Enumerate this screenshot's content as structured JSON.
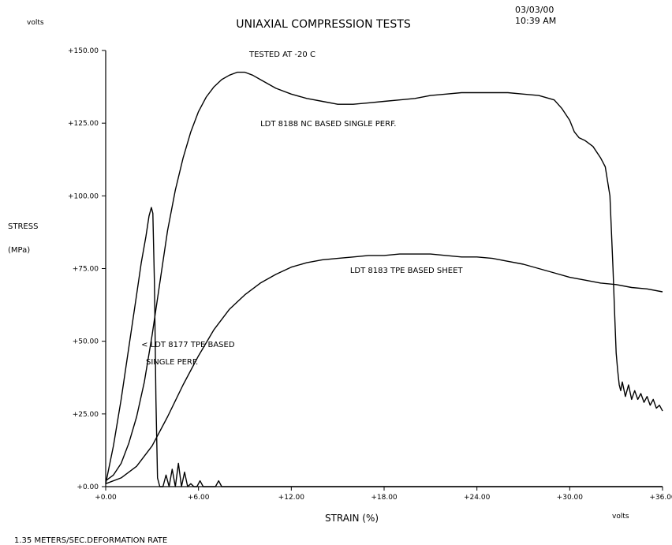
{
  "header": {
    "volts_top": "volts",
    "title": "UNIAXIAL COMPRESSION TESTS",
    "date": "03/03/00",
    "time": "10:39 AM"
  },
  "footer": {
    "rate": "1.35 METERS/SEC.DEFORMATION RATE",
    "volts_bottom": "volts"
  },
  "chart_data": {
    "type": "line",
    "title": "UNIAXIAL COMPRESSION TESTS",
    "subtitle": "TESTED AT -20 C",
    "xlabel": "STRAIN (%)",
    "ylabel": [
      "STRESS",
      "(MPa)"
    ],
    "xlim": [
      0,
      36
    ],
    "ylim": [
      0,
      150
    ],
    "x_ticks": [
      0,
      6,
      12,
      18,
      24,
      30,
      36
    ],
    "x_tick_labels": [
      "+0.00",
      "+6.00",
      "+12.00",
      "+18.00",
      "+24.00",
      "+30.00",
      "+36.00"
    ],
    "y_ticks": [
      0,
      25,
      50,
      75,
      100,
      125,
      150
    ],
    "y_tick_labels": [
      "+0.00",
      "+25.00",
      "+50.00",
      "+75.00",
      "+100.00",
      "+125.00",
      "+150.00"
    ],
    "grid": false,
    "annotations": [
      {
        "text": "LDT 8188 NC BASED SINGLE PERF.",
        "x": 10.0,
        "y": 124
      },
      {
        "text": "LDT 8183 TPE BASED SHEET",
        "x": 15.8,
        "y": 73.5
      },
      {
        "text": "< LDT 8177 TPE BASED",
        "x": 2.3,
        "y": 48
      },
      {
        "text": "SINGLE PERF.",
        "x": 2.6,
        "y": 42
      }
    ],
    "series": [
      {
        "x": [
          0,
          0.5,
          1,
          1.5,
          2,
          2.5,
          3,
          3.5,
          4,
          4.5,
          5,
          5.5,
          6,
          6.5,
          7,
          7.5,
          8,
          8.5,
          9,
          9.5,
          10,
          11,
          12,
          13,
          14,
          15,
          16,
          17,
          18,
          19,
          20,
          21,
          22,
          23,
          24,
          25,
          26,
          27,
          28,
          29,
          29.5,
          30,
          30.3,
          30.6,
          31,
          31.5,
          32,
          32.3,
          32.6,
          32.8,
          32.9,
          33.0,
          33.1,
          33.2,
          33.3,
          33.4,
          33.6,
          33.8,
          34,
          34.2,
          34.4,
          34.6,
          34.8,
          35,
          35.2,
          35.4,
          35.6,
          35.8,
          36
        ],
        "y": [
          2,
          4,
          8,
          15,
          24,
          36,
          52,
          70,
          88,
          102,
          113,
          122,
          129,
          134,
          137.5,
          140,
          141.5,
          142.5,
          142.5,
          141.5,
          140,
          137,
          135,
          133.5,
          132.5,
          131.5,
          131.5,
          132,
          132.5,
          133,
          133.5,
          134.5,
          135,
          135.5,
          135.5,
          135.5,
          135.5,
          135,
          134.5,
          133,
          130,
          126,
          122,
          120,
          119,
          117,
          113,
          110,
          100,
          75,
          60,
          46,
          40,
          35,
          33,
          36,
          31,
          35,
          30,
          33,
          30,
          32,
          29,
          31,
          28,
          30,
          27,
          28,
          26
        ]
      },
      {
        "x": [
          0,
          1,
          2,
          3,
          4,
          5,
          6,
          7,
          8,
          9,
          10,
          11,
          12,
          13,
          14,
          15,
          16,
          17,
          18,
          19,
          20,
          21,
          22,
          23,
          24,
          25,
          26,
          27,
          28,
          29,
          30,
          31,
          32,
          33,
          34,
          35,
          36
        ],
        "y": [
          1,
          3,
          7,
          14,
          24,
          35,
          45,
          54,
          61,
          66,
          70,
          73,
          75.5,
          77,
          78,
          78.5,
          79,
          79.5,
          79.5,
          80,
          80,
          80,
          79.5,
          79,
          79,
          78.5,
          77.5,
          76.5,
          75,
          73.5,
          72,
          71,
          70,
          69.5,
          68.5,
          68,
          67
        ]
      },
      {
        "x": [
          0,
          0.5,
          1,
          1.5,
          2,
          2.3,
          2.6,
          2.8,
          2.95,
          3.05,
          3.15,
          3.25,
          3.35,
          3.5,
          3.7,
          3.9,
          4.1,
          4.3,
          4.5,
          4.7,
          4.9,
          5.1,
          5.3,
          5.5,
          5.7,
          5.9,
          6.1,
          6.3,
          6.5,
          6.7,
          6.9,
          7.1,
          7.3,
          7.5,
          8,
          9,
          12,
          16,
          20,
          24,
          28,
          32,
          36
        ],
        "y": [
          1,
          14,
          30,
          48,
          66,
          77,
          86,
          93,
          96,
          94,
          70,
          30,
          3,
          0,
          0,
          4,
          0,
          6,
          0,
          8,
          0,
          5,
          0,
          1,
          0,
          0,
          2,
          0,
          0,
          0,
          0,
          0,
          2,
          0,
          0,
          0,
          0,
          0,
          0,
          0,
          0,
          0,
          0
        ]
      }
    ]
  }
}
